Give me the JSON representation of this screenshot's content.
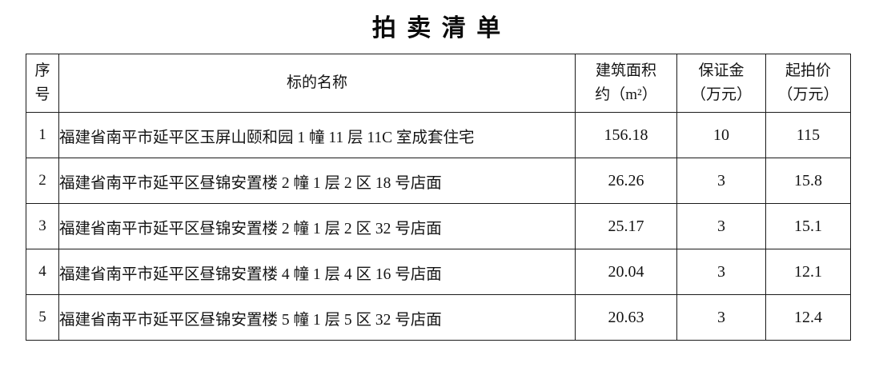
{
  "title": "拍 卖 清 单",
  "colors": {
    "background": "#ffffff",
    "text": "#141414",
    "border": "#1a1a1a"
  },
  "table": {
    "columns": [
      {
        "id": "no",
        "line1": "序",
        "line2": "号"
      },
      {
        "id": "name",
        "line1": "标的名称",
        "line2": ""
      },
      {
        "id": "area",
        "line1": "建筑面积",
        "line2": "约（m²）"
      },
      {
        "id": "deposit",
        "line1": "保证金",
        "line2": "（万元）"
      },
      {
        "id": "price",
        "line1": "起拍价",
        "line2": "（万元）"
      }
    ],
    "rows": [
      {
        "no": "1",
        "name": "福建省南平市延平区玉屏山颐和园 1 幢 11 层 11C 室成套住宅",
        "area": "156.18",
        "deposit": "10",
        "price": "115"
      },
      {
        "no": "2",
        "name": "福建省南平市延平区昼锦安置楼 2 幢 1 层 2 区 18 号店面",
        "area": "26.26",
        "deposit": "3",
        "price": "15.8"
      },
      {
        "no": "3",
        "name": "福建省南平市延平区昼锦安置楼 2 幢 1 层 2 区 32 号店面",
        "area": "25.17",
        "deposit": "3",
        "price": "15.1"
      },
      {
        "no": "4",
        "name": "福建省南平市延平区昼锦安置楼 4 幢 1 层 4 区 16 号店面",
        "area": "20.04",
        "deposit": "3",
        "price": "12.1"
      },
      {
        "no": "5",
        "name": "福建省南平市延平区昼锦安置楼 5 幢 1 层 5 区 32 号店面",
        "area": "20.63",
        "deposit": "3",
        "price": "12.4"
      }
    ]
  }
}
